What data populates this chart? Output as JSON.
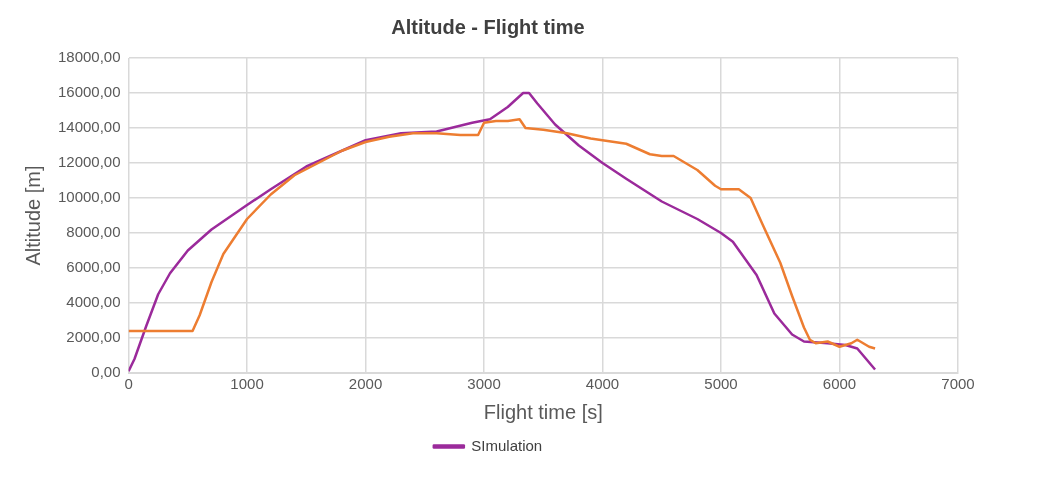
{
  "chart_data": {
    "type": "line",
    "title": "Altitude - Flight time",
    "xlabel": "Flight time [s]",
    "ylabel": "Altitude [m]",
    "xlim": [
      0,
      7000
    ],
    "xticks": [
      0,
      1000,
      2000,
      3000,
      4000,
      5000,
      6000,
      7000
    ],
    "ylim": [
      0,
      18000
    ],
    "yticks": [
      {
        "value": 0,
        "label": "0,00"
      },
      {
        "value": 2000,
        "label": "2000,00"
      },
      {
        "value": 4000,
        "label": "4000,00"
      },
      {
        "value": 6000,
        "label": "6000,00"
      },
      {
        "value": 8000,
        "label": "8000,00"
      },
      {
        "value": 10000,
        "label": "10000,00"
      },
      {
        "value": 12000,
        "label": "12000,00"
      },
      {
        "value": 14000,
        "label": "14000,00"
      },
      {
        "value": 16000,
        "label": "16000,00"
      },
      {
        "value": 18000,
        "label": "18000,00"
      }
    ],
    "grid": true,
    "legend": "bottom",
    "marker": "none",
    "line_style": "solid",
    "series": [
      {
        "color": "#ed7d31",
        "x": [
          0,
          540,
          600,
          700,
          800,
          900,
          1000,
          1200,
          1400,
          1600,
          1800,
          2000,
          2200,
          2400,
          2600,
          2800,
          2950,
          3000,
          3100,
          3200,
          3300,
          3350,
          3500,
          3700,
          3900,
          4000,
          4200,
          4400,
          4500,
          4600,
          4800,
          4950,
          5000,
          5150,
          5250,
          5350,
          5500,
          5600,
          5700,
          5750,
          5800,
          5900,
          6000,
          6100,
          6150,
          6250,
          6300
        ],
        "values": [
          2400,
          2400,
          3300,
          5200,
          6800,
          7800,
          8800,
          10200,
          11300,
          12000,
          12700,
          13200,
          13500,
          13700,
          13700,
          13600,
          13600,
          14300,
          14400,
          14400,
          14500,
          14000,
          13900,
          13700,
          13400,
          13300,
          13100,
          12500,
          12400,
          12400,
          11600,
          10700,
          10500,
          10500,
          10000,
          8500,
          6300,
          4400,
          2600,
          1900,
          1700,
          1800,
          1500,
          1700,
          1900,
          1500,
          1400
        ]
      },
      {
        "name": "SImulation",
        "color": "#9b2a9b",
        "x": [
          0,
          50,
          150,
          250,
          350,
          500,
          700,
          1000,
          1200,
          1500,
          1800,
          2000,
          2300,
          2600,
          2900,
          3050,
          3200,
          3330,
          3380,
          3450,
          3600,
          3800,
          4000,
          4200,
          4500,
          4800,
          5000,
          5100,
          5300,
          5450,
          5600,
          5700,
          5900,
          6050,
          6150,
          6300
        ],
        "values": [
          100,
          800,
          2700,
          4500,
          5700,
          7000,
          8200,
          9600,
          10500,
          11800,
          12700,
          13300,
          13700,
          13800,
          14300,
          14500,
          15200,
          16000,
          16000,
          15400,
          14200,
          13000,
          12000,
          11100,
          9800,
          8800,
          8000,
          7500,
          5600,
          3400,
          2200,
          1800,
          1700,
          1600,
          1400,
          200
        ]
      }
    ]
  }
}
